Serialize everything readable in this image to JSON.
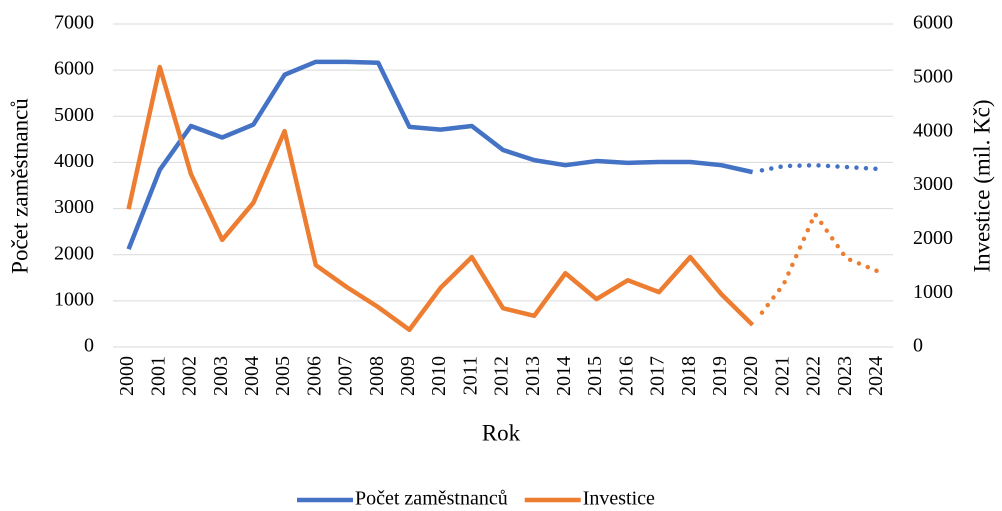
{
  "chart_data": {
    "type": "line",
    "xlabel": "Rok",
    "ylabel": "Počet zaměstnanců",
    "y2label": "Investice (mil. Kč)",
    "categories": [
      "2000",
      "2001",
      "2002",
      "2003",
      "2004",
      "2005",
      "2006",
      "2007",
      "2008",
      "2009",
      "2010",
      "2011",
      "2012",
      "2013",
      "2014",
      "2015",
      "2016",
      "2017",
      "2018",
      "2019",
      "2020",
      "2021",
      "2022",
      "2023",
      "2024"
    ],
    "series": [
      {
        "name": "Počet zaměstnanců",
        "color": "#4472c4",
        "dotted_from": "2020",
        "values": [
          2120,
          3840,
          4790,
          4540,
          4820,
          5900,
          6180,
          6180,
          6160,
          4770,
          4710,
          4790,
          4270,
          4050,
          3940,
          4030,
          3990,
          4010,
          4010,
          3940,
          3790,
          3920,
          3940,
          3900,
          3860
        ]
      },
      {
        "name": "Investice",
        "color": "#ed7d31",
        "axis": "y2",
        "dotted_from": "2020",
        "values": [
          2560,
          5200,
          3210,
          1990,
          2680,
          4010,
          1520,
          1110,
          740,
          320,
          1100,
          1670,
          720,
          580,
          1370,
          890,
          1240,
          1020,
          1670,
          980,
          410,
          1170,
          2470,
          1650,
          1410
        ]
      }
    ],
    "ylim": [
      0,
      7000
    ],
    "yticks": [
      0,
      1000,
      2000,
      3000,
      4000,
      5000,
      6000,
      7000
    ],
    "y2lim": [
      0,
      6000
    ],
    "y2ticks": [
      0,
      1000,
      2000,
      3000,
      4000,
      5000,
      6000
    ],
    "grid": true,
    "legend": "bottom"
  }
}
